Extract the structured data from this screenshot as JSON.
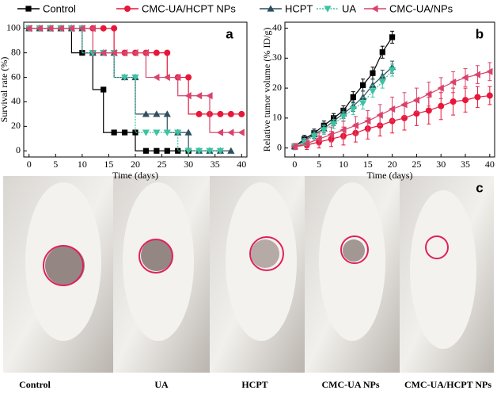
{
  "chart_data": [
    {
      "type": "step",
      "panel_label": "a",
      "x_label": "Time (days)",
      "y_label": "Survival rate (%)",
      "xlim": [
        -1,
        41
      ],
      "xticks": [
        0,
        5,
        10,
        15,
        20,
        25,
        30,
        35,
        40
      ],
      "ylim": [
        -5,
        105
      ],
      "yticks": [
        0,
        20,
        40,
        60,
        80,
        100
      ],
      "series": [
        {
          "name": "Control",
          "color": "#000000",
          "marker": "square",
          "dash": "none",
          "x": [
            0,
            2,
            4,
            6,
            8,
            10,
            12,
            14,
            16,
            18,
            20,
            22,
            24,
            26,
            28,
            30
          ],
          "values": [
            100,
            100,
            100,
            100,
            100,
            80,
            80,
            50,
            15,
            15,
            15,
            0,
            0,
            0,
            0,
            0
          ]
        },
        {
          "name": "CMC-UA/HCPT NPs",
          "color": "#e8173a",
          "marker": "circle",
          "dash": "none",
          "x": [
            0,
            2,
            4,
            6,
            8,
            10,
            12,
            14,
            16,
            18,
            20,
            22,
            24,
            26,
            28,
            30,
            32,
            34,
            36,
            38,
            40
          ],
          "values": [
            100,
            100,
            100,
            100,
            100,
            100,
            100,
            100,
            100,
            80,
            80,
            80,
            80,
            80,
            60,
            60,
            30,
            30,
            30,
            30,
            30
          ]
        },
        {
          "name": "HCPT",
          "color": "#2f4f5f",
          "marker": "triangle-up",
          "dash": "none",
          "x": [
            0,
            2,
            4,
            6,
            8,
            10,
            12,
            14,
            16,
            18,
            20,
            22,
            24,
            26,
            28,
            30,
            32,
            34,
            36,
            38
          ],
          "values": [
            100,
            100,
            100,
            100,
            100,
            100,
            80,
            80,
            80,
            60,
            60,
            30,
            30,
            30,
            15,
            15,
            0,
            0,
            0,
            0
          ]
        },
        {
          "name": "UA",
          "color": "#3cc3a0",
          "marker": "triangle-down",
          "dash": "dotted",
          "x": [
            0,
            2,
            4,
            6,
            8,
            10,
            12,
            14,
            16,
            18,
            20,
            22,
            24,
            26,
            28,
            30,
            32,
            34,
            36
          ],
          "values": [
            100,
            100,
            100,
            100,
            100,
            100,
            80,
            80,
            80,
            60,
            60,
            15,
            15,
            15,
            15,
            0,
            0,
            0,
            0
          ]
        },
        {
          "name": "CMC-UA/NPs",
          "color": "#d9436c",
          "marker": "triangle-left",
          "dash": "none",
          "x": [
            0,
            2,
            4,
            6,
            8,
            10,
            12,
            14,
            16,
            18,
            20,
            22,
            24,
            26,
            28,
            30,
            32,
            34,
            36,
            38,
            40
          ],
          "values": [
            100,
            100,
            100,
            100,
            100,
            100,
            100,
            80,
            80,
            80,
            80,
            80,
            60,
            60,
            60,
            45,
            45,
            45,
            15,
            15,
            15
          ]
        }
      ]
    },
    {
      "type": "errorline",
      "panel_label": "b",
      "x_label": "Time (days)",
      "y_label": "Relative tumor volume (% ID/g)",
      "xlim": [
        -2,
        41
      ],
      "xticks": [
        0,
        5,
        10,
        15,
        20,
        25,
        30,
        35,
        40
      ],
      "ylim": [
        -3,
        42
      ],
      "yticks": [
        0,
        10,
        20,
        30,
        40
      ],
      "series": [
        {
          "name": "Control",
          "color": "#000000",
          "marker": "square",
          "dash": "none",
          "x": [
            0,
            2,
            4,
            6,
            8,
            10,
            12,
            14,
            16,
            18,
            20
          ],
          "values": [
            0.5,
            3,
            5,
            7.5,
            10,
            12.5,
            17,
            21,
            25,
            32,
            37
          ],
          "errors": [
            1,
            1.2,
            1.3,
            1.5,
            1.5,
            1.6,
            1.8,
            2,
            2,
            2,
            2
          ]
        },
        {
          "name": "CMC-UA/HCPT NPs",
          "color": "#e8173a",
          "marker": "circle",
          "dash": "none",
          "x": [
            0,
            2.5,
            5,
            7.5,
            10,
            12.5,
            15,
            17.5,
            20,
            22.5,
            25,
            27.5,
            30,
            32.5,
            35,
            37.5,
            40
          ],
          "values": [
            0.5,
            1,
            2,
            3,
            4,
            5,
            6.5,
            7.5,
            9,
            10,
            11.5,
            12.5,
            14,
            15.5,
            16,
            17,
            17.5
          ],
          "errors": [
            1,
            1.5,
            2,
            2.5,
            3,
            3,
            3.5,
            3.5,
            4,
            4,
            4,
            4.5,
            4.5,
            4.5,
            4,
            3.5,
            3
          ]
        },
        {
          "name": "HCPT",
          "color": "#2f4f5f",
          "marker": "triangle-up",
          "dash": "none",
          "x": [
            0,
            2,
            4,
            6,
            8,
            10,
            12,
            14,
            16,
            18,
            20
          ],
          "values": [
            0.5,
            2.5,
            4.5,
            6.5,
            9,
            11.5,
            14,
            17,
            21,
            24,
            27
          ],
          "errors": [
            1,
            1.2,
            1.3,
            1.5,
            1.5,
            1.6,
            1.8,
            2,
            2,
            2,
            2
          ]
        },
        {
          "name": "UA",
          "color": "#3cc3a0",
          "marker": "triangle-down",
          "dash": "dotted",
          "x": [
            0,
            2,
            4,
            6,
            8,
            10,
            12,
            14,
            16,
            18,
            20
          ],
          "values": [
            0.5,
            2,
            4,
            6,
            8,
            10.5,
            13,
            15,
            19,
            22,
            26
          ],
          "errors": [
            1,
            1.2,
            1.3,
            1.5,
            1.5,
            1.6,
            1.8,
            2,
            2,
            2,
            2
          ]
        },
        {
          "name": "CMC-UA/NPs",
          "color": "#d9436c",
          "marker": "triangle-left",
          "dash": "none",
          "x": [
            0,
            2.5,
            5,
            7.5,
            10,
            12.5,
            15,
            17.5,
            20,
            22.5,
            25,
            27.5,
            30,
            32.5,
            35,
            37.5,
            40
          ],
          "values": [
            0.5,
            1.5,
            3,
            4.5,
            6,
            7.5,
            9,
            11,
            13,
            14.5,
            16,
            18,
            20,
            22,
            23.5,
            24.5,
            25.5
          ],
          "errors": [
            1,
            1.5,
            2,
            2.5,
            3,
            3,
            3.5,
            3.5,
            4,
            4,
            4,
            4,
            3.5,
            3.5,
            3,
            3,
            3
          ]
        }
      ]
    }
  ],
  "photo_panel": {
    "label": "c",
    "captions": [
      "Control",
      "UA",
      "HCPT",
      "CMC-UA NPs",
      "CMC-UA/HCPT NPs"
    ]
  }
}
